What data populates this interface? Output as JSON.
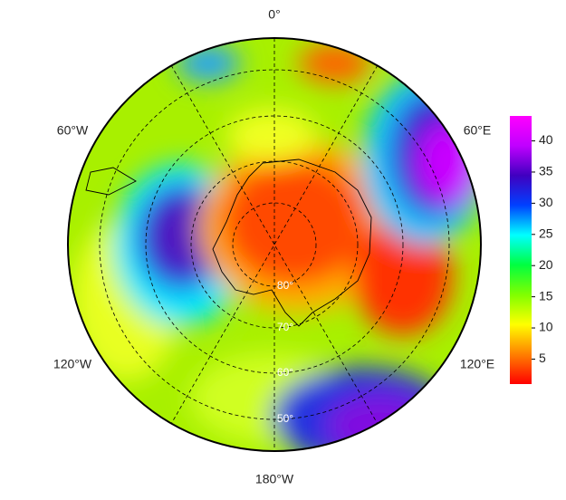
{
  "map": {
    "lon_labels": [
      "0°",
      "60°E",
      "120°E",
      "180°W",
      "120°W",
      "60°W"
    ],
    "lat_labels": [
      "80°",
      "70°",
      "60°",
      "50°"
    ],
    "colorbar": {
      "lim": [
        1,
        44
      ],
      "ticks": [
        5,
        10,
        15,
        20,
        25,
        30,
        35,
        40
      ],
      "colors": [
        "#ff0000",
        "#ff8000",
        "#ffff00",
        "#80ff00",
        "#00ff40",
        "#00ffff",
        "#0040ff",
        "#4000c0",
        "#c000ff",
        "#ff00ff"
      ]
    }
  }
}
